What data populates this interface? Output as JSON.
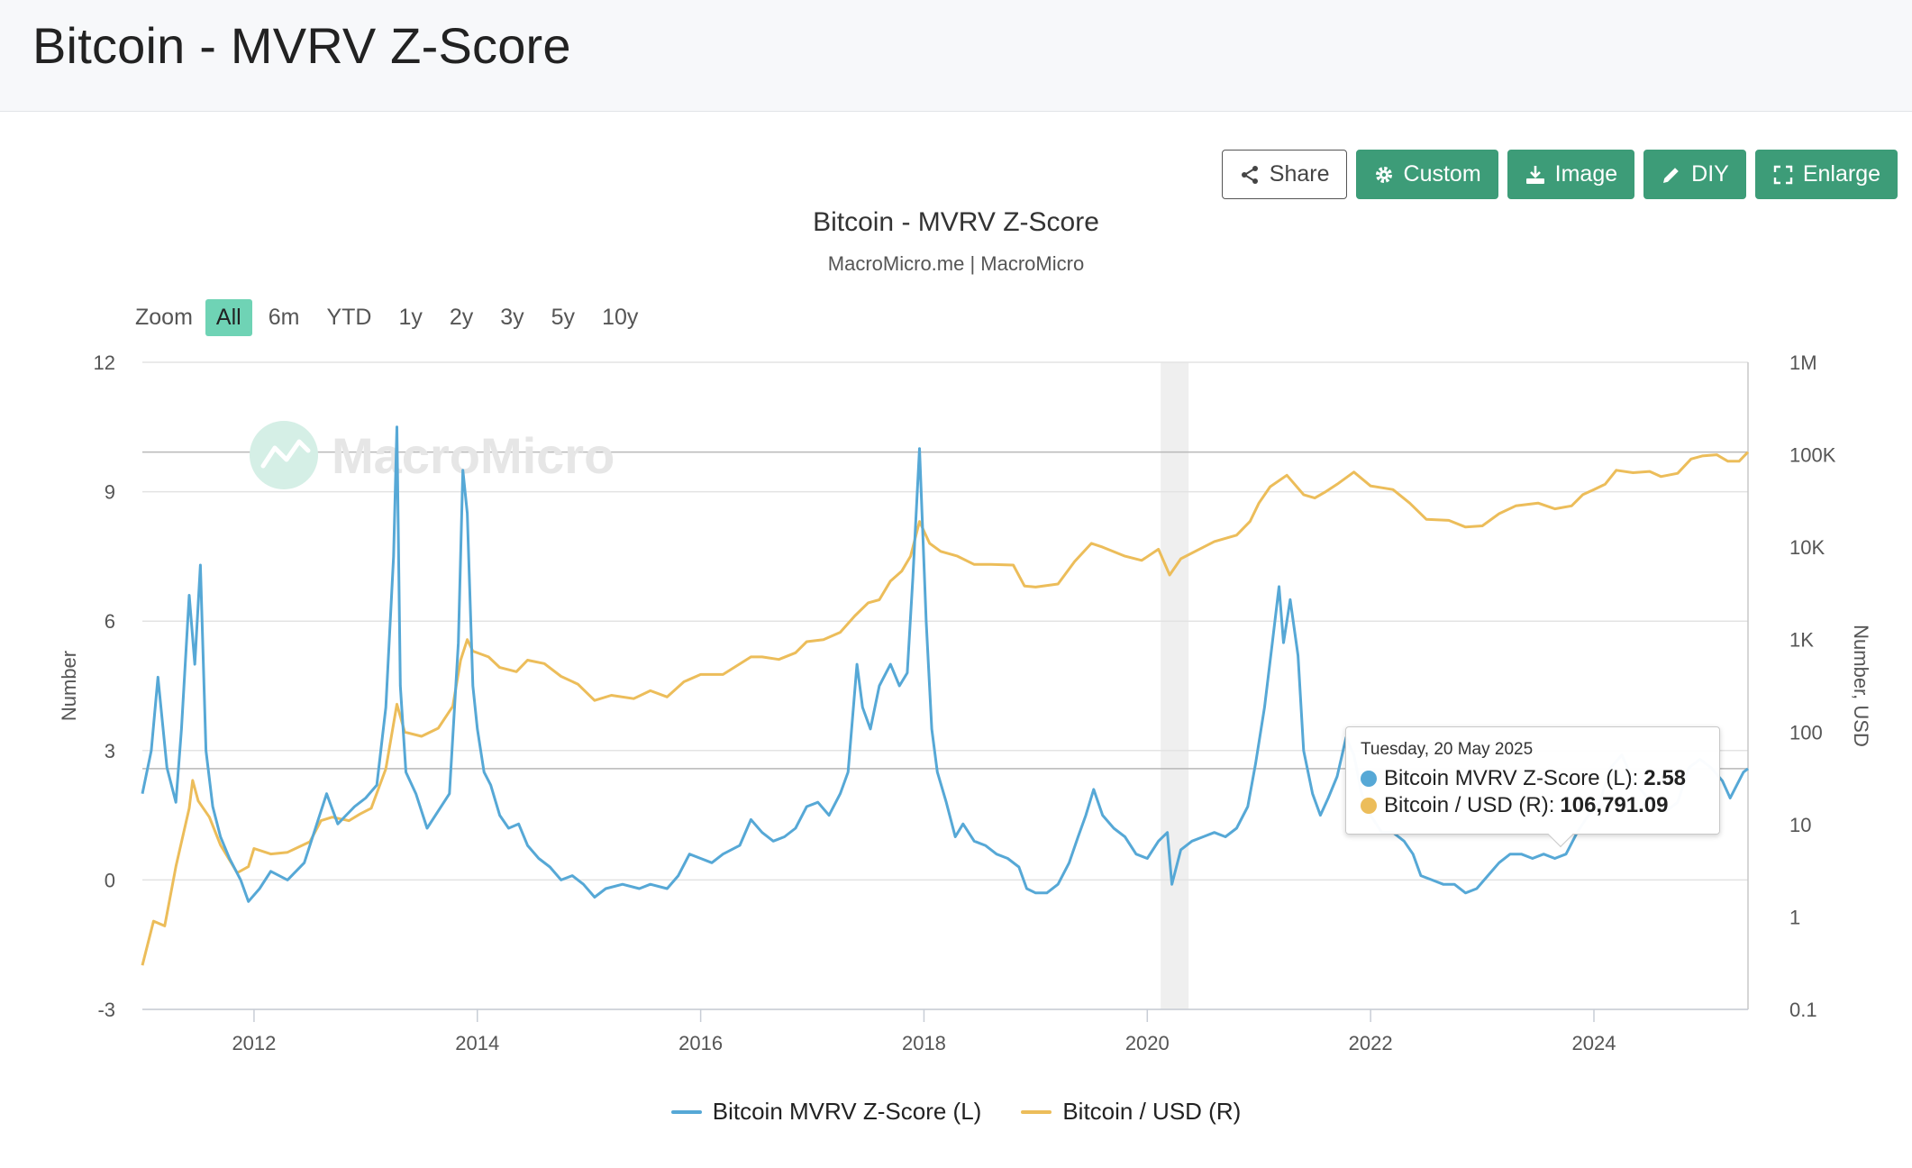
{
  "header": {
    "title": "Bitcoin - MVRV Z-Score"
  },
  "toolbar": {
    "share": "Share",
    "custom": "Custom",
    "image": "Image",
    "diy": "DIY",
    "enlarge": "Enlarge"
  },
  "chart_header": {
    "title": "Bitcoin - MVRV Z-Score",
    "subtitle": "MacroMicro.me | MacroMicro"
  },
  "watermark": "MacroMicro",
  "zoom": {
    "label": "Zoom",
    "options": [
      "All",
      "6m",
      "YTD",
      "1y",
      "2y",
      "3y",
      "5y",
      "10y"
    ],
    "selected": "All"
  },
  "tooltip": {
    "date": "Tuesday, 20 May 2025",
    "rows": [
      {
        "label": "Bitcoin MVRV Z-Score (L):",
        "value": "2.58"
      },
      {
        "label": "Bitcoin / USD (R):",
        "value": "106,791.09"
      }
    ]
  },
  "colors": {
    "mvrv": "#56a8d6",
    "price": "#ecbd5a",
    "accent": "#3d9c78",
    "zoom_active": "#6fd3b5"
  },
  "chart_data": {
    "type": "line",
    "title": "Bitcoin - MVRV Z-Score",
    "subtitle": "MacroMicro.me | MacroMicro",
    "xlim": [
      2011.0,
      2025.38
    ],
    "x_ticks": [
      "2012",
      "2014",
      "2016",
      "2018",
      "2020",
      "2022",
      "2024"
    ],
    "left_axis": {
      "label": "Number",
      "ylim": [
        -3,
        12
      ],
      "ticks": [
        "-3",
        "0",
        "3",
        "6",
        "9",
        "12"
      ]
    },
    "right_axis": {
      "label": "Number, USD",
      "scale": "log",
      "ylim": [
        0.1,
        1000000
      ],
      "ticks": [
        "0.1",
        "1",
        "10",
        "100",
        "1K",
        "10K",
        "100K",
        "1M"
      ]
    },
    "shaded_region": [
      2020.12,
      2020.37
    ],
    "reference_lines": {
      "left": [
        2.58
      ],
      "right": [
        106791.09
      ]
    },
    "series": [
      {
        "name": "Bitcoin MVRV Z-Score (L)",
        "axis": "left",
        "points": [
          [
            2011.0,
            2.0
          ],
          [
            2011.08,
            3.0
          ],
          [
            2011.14,
            4.7
          ],
          [
            2011.22,
            2.6
          ],
          [
            2011.3,
            1.8
          ],
          [
            2011.35,
            3.5
          ],
          [
            2011.42,
            6.6
          ],
          [
            2011.47,
            5.0
          ],
          [
            2011.52,
            7.3
          ],
          [
            2011.57,
            3.0
          ],
          [
            2011.63,
            1.7
          ],
          [
            2011.7,
            1.0
          ],
          [
            2011.78,
            0.5
          ],
          [
            2011.88,
            0.0
          ],
          [
            2011.95,
            -0.5
          ],
          [
            2012.05,
            -0.2
          ],
          [
            2012.15,
            0.2
          ],
          [
            2012.3,
            0.0
          ],
          [
            2012.45,
            0.4
          ],
          [
            2012.6,
            1.6
          ],
          [
            2012.65,
            2.0
          ],
          [
            2012.75,
            1.3
          ],
          [
            2012.9,
            1.7
          ],
          [
            2013.0,
            1.9
          ],
          [
            2013.1,
            2.2
          ],
          [
            2013.18,
            4.0
          ],
          [
            2013.25,
            7.5
          ],
          [
            2013.28,
            10.5
          ],
          [
            2013.31,
            4.5
          ],
          [
            2013.36,
            2.5
          ],
          [
            2013.45,
            2.0
          ],
          [
            2013.55,
            1.2
          ],
          [
            2013.65,
            1.6
          ],
          [
            2013.75,
            2.0
          ],
          [
            2013.83,
            5.5
          ],
          [
            2013.87,
            9.5
          ],
          [
            2013.91,
            8.5
          ],
          [
            2013.96,
            4.5
          ],
          [
            2014.0,
            3.5
          ],
          [
            2014.06,
            2.5
          ],
          [
            2014.12,
            2.2
          ],
          [
            2014.2,
            1.5
          ],
          [
            2014.28,
            1.2
          ],
          [
            2014.37,
            1.3
          ],
          [
            2014.45,
            0.8
          ],
          [
            2014.55,
            0.5
          ],
          [
            2014.65,
            0.3
          ],
          [
            2014.75,
            0.0
          ],
          [
            2014.85,
            0.1
          ],
          [
            2014.95,
            -0.1
          ],
          [
            2015.05,
            -0.4
          ],
          [
            2015.15,
            -0.2
          ],
          [
            2015.3,
            -0.1
          ],
          [
            2015.45,
            -0.2
          ],
          [
            2015.55,
            -0.1
          ],
          [
            2015.7,
            -0.2
          ],
          [
            2015.8,
            0.1
          ],
          [
            2015.9,
            0.6
          ],
          [
            2016.0,
            0.5
          ],
          [
            2016.1,
            0.4
          ],
          [
            2016.2,
            0.6
          ],
          [
            2016.35,
            0.8
          ],
          [
            2016.45,
            1.4
          ],
          [
            2016.55,
            1.1
          ],
          [
            2016.65,
            0.9
          ],
          [
            2016.75,
            1.0
          ],
          [
            2016.85,
            1.2
          ],
          [
            2016.95,
            1.7
          ],
          [
            2017.05,
            1.8
          ],
          [
            2017.15,
            1.5
          ],
          [
            2017.25,
            2.0
          ],
          [
            2017.32,
            2.5
          ],
          [
            2017.4,
            5.0
          ],
          [
            2017.45,
            4.0
          ],
          [
            2017.52,
            3.5
          ],
          [
            2017.6,
            4.5
          ],
          [
            2017.7,
            5.0
          ],
          [
            2017.78,
            4.5
          ],
          [
            2017.85,
            4.8
          ],
          [
            2017.9,
            7.0
          ],
          [
            2017.96,
            10.0
          ],
          [
            2018.02,
            6.0
          ],
          [
            2018.07,
            3.5
          ],
          [
            2018.12,
            2.5
          ],
          [
            2018.2,
            1.8
          ],
          [
            2018.28,
            1.0
          ],
          [
            2018.35,
            1.3
          ],
          [
            2018.45,
            0.9
          ],
          [
            2018.55,
            0.8
          ],
          [
            2018.65,
            0.6
          ],
          [
            2018.75,
            0.5
          ],
          [
            2018.85,
            0.3
          ],
          [
            2018.92,
            -0.2
          ],
          [
            2019.0,
            -0.3
          ],
          [
            2019.1,
            -0.3
          ],
          [
            2019.2,
            -0.1
          ],
          [
            2019.3,
            0.4
          ],
          [
            2019.38,
            1.0
          ],
          [
            2019.45,
            1.5
          ],
          [
            2019.52,
            2.1
          ],
          [
            2019.6,
            1.5
          ],
          [
            2019.7,
            1.2
          ],
          [
            2019.8,
            1.0
          ],
          [
            2019.9,
            0.6
          ],
          [
            2020.0,
            0.5
          ],
          [
            2020.1,
            0.9
          ],
          [
            2020.18,
            1.1
          ],
          [
            2020.22,
            -0.1
          ],
          [
            2020.3,
            0.7
          ],
          [
            2020.4,
            0.9
          ],
          [
            2020.5,
            1.0
          ],
          [
            2020.6,
            1.1
          ],
          [
            2020.7,
            1.0
          ],
          [
            2020.8,
            1.2
          ],
          [
            2020.9,
            1.7
          ],
          [
            2020.97,
            2.7
          ],
          [
            2021.05,
            4.0
          ],
          [
            2021.12,
            5.5
          ],
          [
            2021.18,
            6.8
          ],
          [
            2021.22,
            5.5
          ],
          [
            2021.28,
            6.5
          ],
          [
            2021.35,
            5.2
          ],
          [
            2021.4,
            3.0
          ],
          [
            2021.48,
            2.0
          ],
          [
            2021.55,
            1.5
          ],
          [
            2021.62,
            1.9
          ],
          [
            2021.7,
            2.4
          ],
          [
            2021.78,
            3.3
          ],
          [
            2021.85,
            2.9
          ],
          [
            2021.92,
            2.0
          ],
          [
            2022.0,
            1.5
          ],
          [
            2022.1,
            1.1
          ],
          [
            2022.2,
            1.1
          ],
          [
            2022.3,
            0.9
          ],
          [
            2022.38,
            0.6
          ],
          [
            2022.45,
            0.1
          ],
          [
            2022.55,
            0.0
          ],
          [
            2022.65,
            -0.1
          ],
          [
            2022.75,
            -0.1
          ],
          [
            2022.85,
            -0.3
          ],
          [
            2022.95,
            -0.2
          ],
          [
            2023.05,
            0.1
          ],
          [
            2023.15,
            0.4
          ],
          [
            2023.25,
            0.6
          ],
          [
            2023.35,
            0.6
          ],
          [
            2023.45,
            0.5
          ],
          [
            2023.55,
            0.6
          ],
          [
            2023.65,
            0.5
          ],
          [
            2023.75,
            0.6
          ],
          [
            2023.85,
            1.1
          ],
          [
            2023.95,
            1.5
          ],
          [
            2024.05,
            1.8
          ],
          [
            2024.15,
            2.6
          ],
          [
            2024.25,
            2.9
          ],
          [
            2024.35,
            2.3
          ],
          [
            2024.45,
            2.0
          ],
          [
            2024.55,
            1.7
          ],
          [
            2024.65,
            1.6
          ],
          [
            2024.75,
            1.8
          ],
          [
            2024.85,
            2.6
          ],
          [
            2024.95,
            2.8
          ],
          [
            2025.05,
            2.6
          ],
          [
            2025.15,
            2.3
          ],
          [
            2025.22,
            1.9
          ],
          [
            2025.28,
            2.2
          ],
          [
            2025.34,
            2.5
          ],
          [
            2025.38,
            2.58
          ]
        ]
      },
      {
        "name": "Bitcoin / USD (R)",
        "axis": "right",
        "points": [
          [
            2011.0,
            0.3
          ],
          [
            2011.1,
            0.9
          ],
          [
            2011.2,
            0.8
          ],
          [
            2011.3,
            3.5
          ],
          [
            2011.42,
            15
          ],
          [
            2011.45,
            30
          ],
          [
            2011.5,
            18
          ],
          [
            2011.6,
            12
          ],
          [
            2011.7,
            6
          ],
          [
            2011.85,
            3
          ],
          [
            2011.95,
            3.5
          ],
          [
            2012.0,
            5.5
          ],
          [
            2012.15,
            4.8
          ],
          [
            2012.3,
            5
          ],
          [
            2012.5,
            6.5
          ],
          [
            2012.6,
            11
          ],
          [
            2012.7,
            12
          ],
          [
            2012.85,
            11
          ],
          [
            2012.95,
            13
          ],
          [
            2013.05,
            15
          ],
          [
            2013.18,
            40
          ],
          [
            2013.28,
            200
          ],
          [
            2013.35,
            100
          ],
          [
            2013.5,
            90
          ],
          [
            2013.65,
            110
          ],
          [
            2013.78,
            190
          ],
          [
            2013.85,
            600
          ],
          [
            2013.91,
            1000
          ],
          [
            2013.96,
            750
          ],
          [
            2014.1,
            650
          ],
          [
            2014.2,
            500
          ],
          [
            2014.35,
            450
          ],
          [
            2014.45,
            600
          ],
          [
            2014.6,
            550
          ],
          [
            2014.75,
            400
          ],
          [
            2014.9,
            330
          ],
          [
            2015.05,
            220
          ],
          [
            2015.2,
            250
          ],
          [
            2015.4,
            230
          ],
          [
            2015.55,
            280
          ],
          [
            2015.7,
            240
          ],
          [
            2015.85,
            350
          ],
          [
            2016.0,
            420
          ],
          [
            2016.2,
            420
          ],
          [
            2016.45,
            650
          ],
          [
            2016.55,
            650
          ],
          [
            2016.7,
            610
          ],
          [
            2016.85,
            720
          ],
          [
            2016.95,
            950
          ],
          [
            2017.1,
            1000
          ],
          [
            2017.25,
            1200
          ],
          [
            2017.38,
            1800
          ],
          [
            2017.5,
            2500
          ],
          [
            2017.6,
            2700
          ],
          [
            2017.7,
            4300
          ],
          [
            2017.8,
            5500
          ],
          [
            2017.88,
            8000
          ],
          [
            2017.96,
            19000
          ],
          [
            2018.05,
            11000
          ],
          [
            2018.15,
            9000
          ],
          [
            2018.3,
            8000
          ],
          [
            2018.45,
            6500
          ],
          [
            2018.6,
            6500
          ],
          [
            2018.8,
            6400
          ],
          [
            2018.9,
            3800
          ],
          [
            2019.0,
            3700
          ],
          [
            2019.2,
            4000
          ],
          [
            2019.35,
            7000
          ],
          [
            2019.5,
            11000
          ],
          [
            2019.6,
            10000
          ],
          [
            2019.8,
            8000
          ],
          [
            2019.95,
            7200
          ],
          [
            2020.1,
            9500
          ],
          [
            2020.2,
            5000
          ],
          [
            2020.3,
            7500
          ],
          [
            2020.45,
            9300
          ],
          [
            2020.6,
            11500
          ],
          [
            2020.8,
            13500
          ],
          [
            2020.92,
            19000
          ],
          [
            2021.0,
            30000
          ],
          [
            2021.1,
            45000
          ],
          [
            2021.25,
            60000
          ],
          [
            2021.4,
            37000
          ],
          [
            2021.5,
            34000
          ],
          [
            2021.6,
            40000
          ],
          [
            2021.7,
            48000
          ],
          [
            2021.85,
            65000
          ],
          [
            2022.0,
            46000
          ],
          [
            2022.2,
            42000
          ],
          [
            2022.35,
            30000
          ],
          [
            2022.5,
            20000
          ],
          [
            2022.7,
            19500
          ],
          [
            2022.85,
            16500
          ],
          [
            2023.0,
            17000
          ],
          [
            2023.15,
            23000
          ],
          [
            2023.3,
            28000
          ],
          [
            2023.5,
            30000
          ],
          [
            2023.65,
            26000
          ],
          [
            2023.8,
            28000
          ],
          [
            2023.9,
            37000
          ],
          [
            2024.0,
            42000
          ],
          [
            2024.1,
            48000
          ],
          [
            2024.2,
            68000
          ],
          [
            2024.35,
            64000
          ],
          [
            2024.5,
            66000
          ],
          [
            2024.6,
            58000
          ],
          [
            2024.75,
            63000
          ],
          [
            2024.87,
            90000
          ],
          [
            2024.97,
            97000
          ],
          [
            2025.1,
            100000
          ],
          [
            2025.2,
            85000
          ],
          [
            2025.3,
            85000
          ],
          [
            2025.38,
            106791.09
          ]
        ]
      }
    ]
  }
}
